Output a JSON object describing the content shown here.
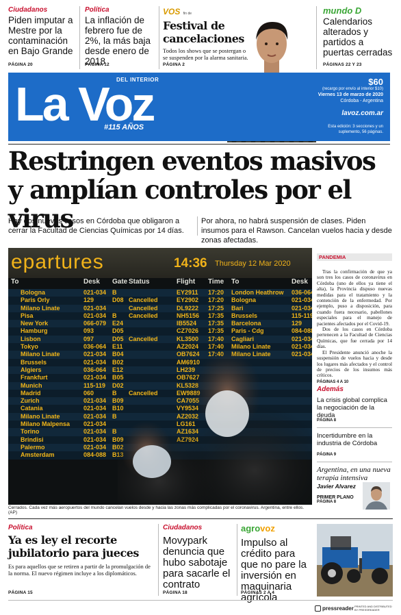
{
  "teasers": [
    {
      "section": "Ciudadanos",
      "text": "Piden imputar a Mestre por la contaminación en Bajo Grande",
      "page": "PÁGINA 20"
    },
    {
      "section": "Política",
      "text": "La inflación de febrero fue de 2%, la más baja desde enero de 2018",
      "page": "PÁGINA 12"
    },
    {
      "section_brand": "VOS",
      "section_sub": "fin de",
      "title": "Festival de cancelaciones",
      "text": "Todos los shows que se postergan o se suspenden por la alarma sanitaria.",
      "page": "PÁGINA 2"
    },
    {
      "section_brand": "mundo D",
      "text": "Calendarios alterados y partidos a puertas cerradas",
      "page": "PÁGINAS 22 Y 23"
    }
  ],
  "masthead": {
    "logo": "La Voz",
    "logo_sub": "DEL INTERIOR",
    "anniversary": "#115 AÑOS",
    "price": "$60",
    "price_note": "(recargo por envío al interior $10)",
    "date": "Viernes 13 de marzo de 2020",
    "location": "Córdoba - Argentina",
    "website": "lavoz.com.ar",
    "edition": "Esta edición: 3 secciones y un suplemento, 56 páginas."
  },
  "headline": "Restringen eventos masivos y amplían controles por el virus",
  "deck": {
    "left": "Hay dos nuevos casos en Córdoba que obligaron a cerrar la Facultad de Ciencias Químicas por 14 días.",
    "right": "Por ahora, no habrá suspensión de clases. Piden insumos para el Rawson. Cancelan vuelos hacia y desde zonas afectadas."
  },
  "photo": {
    "board_title": "epartures",
    "time": "14:36",
    "date": "Thursday 12 Mar 2020",
    "headers": [
      "To",
      "Desk",
      "Gate",
      "Status",
      "Flight",
      "Time",
      "To",
      "Desk"
    ],
    "rows": [
      [
        "Bologna",
        "021-034",
        "B",
        "",
        "EY2911",
        "17:20",
        "London Heathrow",
        "036-064"
      ],
      [
        "Paris Orly",
        "129",
        "D08",
        "Cancelled",
        "EY2902",
        "17:20",
        "Bologna",
        "021-034"
      ],
      [
        "Milano Linate",
        "021-034",
        "",
        "Cancelled",
        "DL9222",
        "17:25",
        "Bari",
        "021-034"
      ],
      [
        "Pisa",
        "021-034",
        "B",
        "Cancelled",
        "NH5156",
        "17:35",
        "Brussels",
        "115-119"
      ],
      [
        "New York",
        "066-079",
        "E24",
        "",
        "IB5524",
        "17:35",
        "Barcelona",
        "129"
      ],
      [
        "Hamburg",
        "093",
        "D05",
        "",
        "CZ7026",
        "17:35",
        "Paris - Cdg",
        "084-088"
      ],
      [
        "Lisbon",
        "097",
        "D05",
        "Cancelled",
        "KL3500",
        "17:40",
        "Cagliari",
        "021-034"
      ],
      [
        "Tokyo",
        "036-064",
        "E11",
        "",
        "AZ2024",
        "17:40",
        "Milano Linate",
        "021-034"
      ],
      [
        "Milano Linate",
        "021-034",
        "B04",
        "",
        "OB7624",
        "17:40",
        "Milano Linate",
        "021-034"
      ],
      [
        "Brussels",
        "021-034",
        "B02",
        "",
        "AM6910",
        "",
        "",
        ""
      ],
      [
        "Algiers",
        "036-064",
        "E12",
        "",
        "LH239",
        "",
        "",
        ""
      ],
      [
        "Frankfurt",
        "021-034",
        "B05",
        "",
        "OB7627",
        "",
        "",
        ""
      ],
      [
        "Munich",
        "115-119",
        "D02",
        "",
        "KL5328",
        "",
        "",
        ""
      ],
      [
        "Madrid",
        "060",
        "B",
        "Cancelled",
        "EW9889",
        "",
        "",
        ""
      ],
      [
        "Zurich",
        "021-034",
        "B09",
        "",
        "CA7055",
        "",
        "",
        ""
      ],
      [
        "Catania",
        "021-034",
        "B10",
        "",
        "VY9534",
        "",
        "",
        ""
      ],
      [
        "Milano Linate",
        "021-034",
        "B",
        "",
        "AZ2032",
        "",
        "",
        ""
      ],
      [
        "Milano Malpensa",
        "021-034",
        "",
        "",
        "LG161",
        "",
        "",
        ""
      ],
      [
        "Torino",
        "021-034",
        "B",
        "",
        "AZ1634",
        "",
        "",
        ""
      ],
      [
        "Brindisi",
        "021-034",
        "B09",
        "",
        "AZ7924",
        "",
        "",
        ""
      ],
      [
        "Palermo",
        "021-034",
        "B02",
        "",
        "",
        "",
        "",
        ""
      ],
      [
        "Amsterdam",
        "084-088",
        "B13",
        "",
        "",
        "",
        "",
        ""
      ]
    ],
    "caption": "Cerrados. Cada vez más aeropuertos del mundo cancelan vuelos desde y hacia las zonas más complicadas por el coronavirus. Argentina, entre ellos. (AP)"
  },
  "sidebar": {
    "pandemia": {
      "label": "PANDEMIA",
      "p1": "Tras la confirmación de que ya son tres los casos de coronavirus en Córdoba (uno de ellos ya tiene el alta), la Provincia dispuso nuevas medidas para el tratamiento y la contención de la enfermedad. Por ejemplo, puso a disposición, para cuando fuera necesario, pabellones especiales para el manejo de pacientes afectados por el Covid-19.",
      "p2": "Dos de los casos en Córdoba pertenecen a la Facultad de Ciencias Químicas, que fue cerrada por 14 días.",
      "p3": "El Presidente anunció anoche la suspensión de vuelos hacia y desde los lugares más afectados y el control de precios de los insumos más críticos.",
      "page": "PÁGINAS 4 A 10"
    },
    "ademas_label": "Además",
    "items": [
      {
        "text": "La crisis global complica la negociación de la deuda",
        "page": "PÁGINA 8"
      },
      {
        "text": "Incertidumbre en la industria de Córdoba",
        "page": "PÁGINA 9"
      }
    ],
    "opinion": {
      "title": "Argentina, en una nueva terapia intensiva",
      "author": "Javier Alvarez",
      "label": "PRIMER PLANO",
      "page": "PÁGINA 8"
    }
  },
  "bottom": [
    {
      "section": "Política",
      "title": "Ya es ley el recorte jubilatorio para jueces",
      "text": "Es para aquellos que se retiren a partir de la promulgación de la norma. El nuevo régimen incluye a los diplomáticos.",
      "page": "PÁGINA 15"
    },
    {
      "section": "Ciudadanos",
      "title": "Movypark denuncia que hubo sabotaje para sacarle el contrato",
      "page": "PÁGINA 18"
    },
    {
      "section_brand_a": "agro",
      "section_brand_b": "voz",
      "title": "Impulso al crédito para que no pare la inversión en maquinaria agrícola",
      "page": "PÁGINAS 2 A 4"
    }
  ],
  "footer": {
    "pressreader": "pressreader",
    "fine_print": "PRINTED AND DISTRIBUTED BY PRESSREADER"
  }
}
